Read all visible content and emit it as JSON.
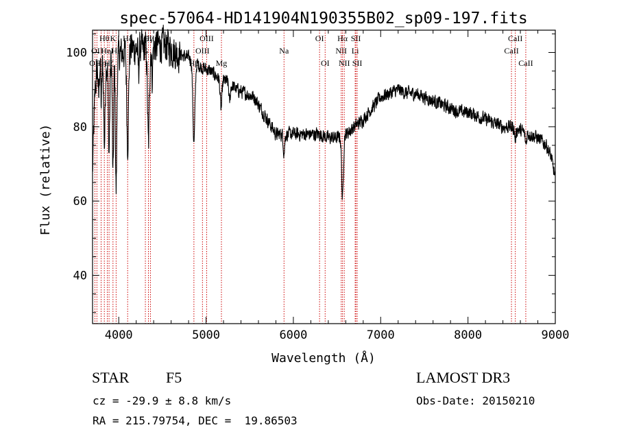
{
  "chart_data": {
    "type": "line",
    "title": "spec-57064-HD141904N190355B02_sp09-197.fits",
    "xlabel": "Wavelength (Å)",
    "ylabel": "Flux (relative)",
    "xlim": [
      3700,
      9000
    ],
    "ylim": [
      27,
      106
    ],
    "xticks": [
      4000,
      5000,
      6000,
      7000,
      8000,
      9000
    ],
    "yticks": [
      40,
      60,
      80,
      100
    ],
    "anchors": [
      [
        3700,
        67
      ],
      [
        3715,
        80
      ],
      [
        3730,
        90
      ],
      [
        3760,
        97
      ],
      [
        3800,
        98
      ],
      [
        3860,
        97
      ],
      [
        3920,
        98
      ],
      [
        3980,
        99
      ],
      [
        4050,
        100
      ],
      [
        4150,
        101
      ],
      [
        4250,
        101
      ],
      [
        4350,
        101
      ],
      [
        4450,
        102
      ],
      [
        4550,
        102
      ],
      [
        4650,
        100
      ],
      [
        4750,
        99
      ],
      [
        4850,
        98
      ],
      [
        4950,
        96
      ],
      [
        5050,
        95
      ],
      [
        5150,
        93
      ],
      [
        5250,
        92
      ],
      [
        5350,
        90
      ],
      [
        5450,
        89
      ],
      [
        5550,
        88
      ],
      [
        5600,
        86
      ],
      [
        5700,
        82
      ],
      [
        5800,
        78
      ],
      [
        5900,
        78
      ],
      [
        6000,
        78
      ],
      [
        6100,
        78
      ],
      [
        6200,
        78
      ],
      [
        6300,
        78
      ],
      [
        6400,
        77
      ],
      [
        6500,
        77
      ],
      [
        6600,
        78
      ],
      [
        6700,
        80
      ],
      [
        6800,
        82
      ],
      [
        6900,
        85
      ],
      [
        7000,
        88
      ],
      [
        7100,
        89
      ],
      [
        7200,
        90
      ],
      [
        7300,
        89
      ],
      [
        7400,
        89
      ],
      [
        7500,
        88
      ],
      [
        7600,
        87
      ],
      [
        7700,
        86
      ],
      [
        7800,
        85
      ],
      [
        7900,
        84
      ],
      [
        8000,
        84
      ],
      [
        8100,
        83
      ],
      [
        8200,
        82
      ],
      [
        8300,
        81
      ],
      [
        8400,
        80
      ],
      [
        8500,
        80
      ],
      [
        8600,
        79
      ],
      [
        8700,
        78
      ],
      [
        8800,
        77
      ],
      [
        8900,
        75
      ],
      [
        8950,
        72
      ],
      [
        9000,
        66
      ]
    ],
    "absorption_dips": [
      {
        "x": 3770,
        "depth": 10,
        "width": 6
      },
      {
        "x": 3800,
        "depth": 12,
        "width": 6
      },
      {
        "x": 3836,
        "depth": 22,
        "width": 8
      },
      {
        "x": 3889,
        "depth": 24,
        "width": 8
      },
      {
        "x": 3934,
        "depth": 32,
        "width": 7
      },
      {
        "x": 3970,
        "depth": 36,
        "width": 8
      },
      {
        "x": 4102,
        "depth": 25,
        "width": 10
      },
      {
        "x": 4227,
        "depth": 6,
        "width": 6
      },
      {
        "x": 4340,
        "depth": 26,
        "width": 10
      },
      {
        "x": 4383,
        "depth": 8,
        "width": 6
      },
      {
        "x": 4861,
        "depth": 22,
        "width": 12
      },
      {
        "x": 5172,
        "depth": 8,
        "width": 10
      },
      {
        "x": 5270,
        "depth": 5,
        "width": 8
      },
      {
        "x": 5893,
        "depth": 5,
        "width": 8
      },
      {
        "x": 6563,
        "depth": 17,
        "width": 10
      },
      {
        "x": 8542,
        "depth": 3,
        "width": 8
      },
      {
        "x": 8662,
        "depth": 3,
        "width": 8
      }
    ],
    "noise": 1.6,
    "noise_scale_blue": 2.6,
    "lines": [
      {
        "x": 3727,
        "label": "OII",
        "row": 2
      },
      {
        "x": 3750,
        "label": "OII",
        "row": 1
      },
      {
        "x": 3798,
        "label": "Hη",
        "row": 2
      },
      {
        "x": 3835,
        "label": "Hθ",
        "row": 0
      },
      {
        "x": 3869,
        "label": "HeI",
        "row": 1
      },
      {
        "x": 3889,
        "label": "Hζ",
        "row": 2
      },
      {
        "x": 3934,
        "label": "K",
        "row": 0
      },
      {
        "x": 3970,
        "label": "Hε",
        "row": 1
      },
      {
        "x": 4102,
        "label": "Hδ",
        "row": 0
      },
      {
        "x": 4305,
        "label": "G",
        "row": 1
      },
      {
        "x": 4340,
        "label": "Hγ",
        "row": 0
      },
      {
        "x": 4363,
        "label": "OIII",
        "row": 0
      },
      {
        "x": 4861,
        "label": "Hβ",
        "row": 2
      },
      {
        "x": 4959,
        "label": "OIII",
        "row": 1
      },
      {
        "x": 5007,
        "label": "OIII",
        "row": 0
      },
      {
        "x": 5176,
        "label": "Mg",
        "row": 2
      },
      {
        "x": 5893,
        "label": "Na",
        "row": 1
      },
      {
        "x": 6300,
        "label": "OI",
        "row": 0
      },
      {
        "x": 6364,
        "label": "OI",
        "row": 2
      },
      {
        "x": 6548,
        "label": "NII",
        "row": 1
      },
      {
        "x": 6563,
        "label": "Hα",
        "row": 0
      },
      {
        "x": 6583,
        "label": "NII",
        "row": 2
      },
      {
        "x": 6708,
        "label": "Li",
        "row": 1
      },
      {
        "x": 6716,
        "label": "SII",
        "row": 0
      },
      {
        "x": 6731,
        "label": "SII",
        "row": 2
      },
      {
        "x": 8498,
        "label": "CaII",
        "row": 1
      },
      {
        "x": 8542,
        "label": "CaII",
        "row": 0
      },
      {
        "x": 8662,
        "label": "CaII",
        "row": 2
      }
    ],
    "line_color": "#cc0000",
    "spectrum_color": "#000000"
  },
  "info": {
    "object_class": "STAR",
    "subclass": "F5",
    "survey": "LAMOST DR3",
    "velocity": "cz = -29.9 ± 8.8 km/s",
    "obs_date": "Obs-Date: 20150210",
    "coords": "RA = 215.79754, DEC =  19.86503"
  }
}
